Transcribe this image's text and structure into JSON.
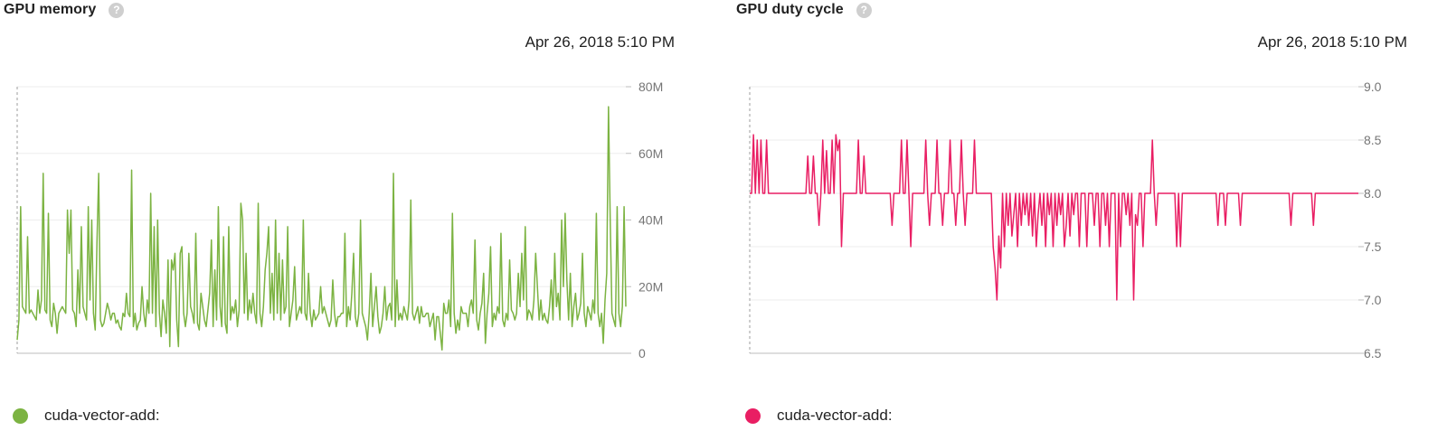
{
  "panels": [
    {
      "title": "GPU memory",
      "timestamp": "Apr 26, 2018 5:10 PM",
      "legend_label": "cuda-vector-add:",
      "color": "#7cb342"
    },
    {
      "title": "GPU duty cycle",
      "timestamp": "Apr 26, 2018 5:10 PM",
      "legend_label": "cuda-vector-add:",
      "color": "#e91e63"
    }
  ],
  "icons": {
    "help": "help-circle-icon",
    "legend": "legend-dot-icon"
  },
  "help_glyph": "?",
  "chart_data": [
    {
      "type": "line",
      "title": "GPU memory",
      "ylim": [
        0,
        80000000
      ],
      "y_ticks": [
        0,
        20000000,
        40000000,
        60000000,
        80000000
      ],
      "y_tick_labels": [
        "0",
        "20M",
        "40M",
        "60M",
        "80M"
      ],
      "grid": true,
      "legend": "bottom-left",
      "series": [
        {
          "name": "cuda-vector-add:",
          "color": "#7cb342",
          "values": [
            4,
            10,
            44,
            14,
            13,
            12,
            35,
            12,
            13,
            12,
            11,
            10,
            19,
            12,
            16,
            54,
            13,
            12,
            42,
            10,
            8,
            15,
            12,
            6,
            12,
            13,
            14,
            13,
            12,
            43,
            30,
            43,
            13,
            12,
            8,
            25,
            12,
            38,
            14,
            12,
            10,
            44,
            16,
            40,
            12,
            7,
            33,
            54,
            10,
            8,
            9,
            12,
            15,
            13,
            10,
            12,
            12,
            9,
            10,
            8,
            7,
            12,
            11,
            18,
            12,
            11,
            55,
            8,
            12,
            7,
            9,
            10,
            20,
            12,
            8,
            16,
            12,
            48,
            12,
            38,
            8,
            40,
            12,
            5,
            16,
            12,
            6,
            28,
            2,
            28,
            25,
            30,
            10,
            2,
            30,
            32,
            12,
            8,
            12,
            30,
            14,
            12,
            9,
            36,
            9,
            7,
            18,
            14,
            10,
            8,
            13,
            18,
            34,
            8,
            25,
            10,
            44,
            14,
            8,
            35,
            9,
            6,
            38,
            10,
            14,
            12,
            16,
            8,
            13,
            45,
            40,
            12,
            30,
            10,
            16,
            12,
            18,
            12,
            9,
            45,
            12,
            8,
            14,
            25,
            30,
            38,
            12,
            24,
            10,
            40,
            12,
            30,
            10,
            28,
            12,
            14,
            38,
            8,
            12,
            16,
            26,
            10,
            12,
            14,
            12,
            40,
            12,
            10,
            24,
            12,
            8,
            13,
            10,
            11,
            12,
            20,
            12,
            14,
            12,
            10,
            8,
            10,
            22,
            12,
            8,
            11,
            11,
            12,
            12,
            36,
            8,
            14,
            10,
            18,
            30,
            11,
            8,
            12,
            40,
            12,
            10,
            8,
            4,
            12,
            24,
            8,
            14,
            20,
            11,
            6,
            8,
            12,
            20,
            10,
            14,
            15,
            10,
            54,
            8,
            22,
            10,
            12,
            10,
            14,
            12,
            10,
            16,
            46,
            12,
            10,
            12,
            14,
            9,
            14,
            11,
            11,
            12,
            12,
            8,
            10,
            12,
            4,
            11,
            11,
            6,
            1,
            15,
            12,
            12,
            16,
            8,
            42,
            12,
            6,
            10,
            7,
            14,
            12,
            12,
            12,
            8,
            14,
            16,
            12,
            34,
            10,
            7,
            12,
            15,
            24,
            3,
            12,
            18,
            32,
            8,
            12,
            10,
            14,
            12,
            36,
            10,
            8,
            12,
            10,
            28,
            13,
            12,
            10,
            12,
            24,
            14,
            30,
            16,
            38,
            10,
            13,
            12,
            10,
            16,
            30,
            20,
            10,
            16,
            10,
            12,
            10,
            9,
            14,
            22,
            10,
            30,
            14,
            18,
            10,
            40,
            20,
            42,
            22,
            10,
            24,
            8,
            14,
            18,
            10,
            12,
            15,
            30,
            12,
            8,
            14,
            12,
            10,
            16,
            12,
            42,
            12,
            8,
            12,
            3,
            16,
            24,
            74,
            40,
            12,
            10,
            8,
            44,
            12,
            8,
            14,
            44,
            14
          ]
        }
      ]
    },
    {
      "type": "line",
      "title": "GPU duty cycle",
      "ylim": [
        6.5,
        9.0
      ],
      "y_ticks": [
        6.5,
        7.0,
        7.5,
        8.0,
        8.5,
        9.0
      ],
      "y_tick_labels": [
        "6.5",
        "7.0",
        "7.5",
        "8.0",
        "8.5",
        "9.0"
      ],
      "grid": true,
      "legend": "bottom-left",
      "series": [
        {
          "name": "cuda-vector-add:",
          "color": "#e91e63",
          "values": [
            8.0,
            8.0,
            8.55,
            8.0,
            8.5,
            8.0,
            8.5,
            8.0,
            8.0,
            8.5,
            8.0,
            8.0,
            8.0,
            8.0,
            8.0,
            8.0,
            8.0,
            8.0,
            8.0,
            8.0,
            8.0,
            8.0,
            8.0,
            8.0,
            8.0,
            8.0,
            8.0,
            8.0,
            8.0,
            8.0,
            8.0,
            8.35,
            8.0,
            8.0,
            8.35,
            8.0,
            8.0,
            7.7,
            8.0,
            8.5,
            8.0,
            8.4,
            8.0,
            8.0,
            8.5,
            8.0,
            8.55,
            8.4,
            8.5,
            7.5,
            8.0,
            8.0,
            8.0,
            8.0,
            8.0,
            8.0,
            8.0,
            8.0,
            8.5,
            8.0,
            8.0,
            8.35,
            8.0,
            8.0,
            8.0,
            8.0,
            8.0,
            8.0,
            8.0,
            8.0,
            8.0,
            8.0,
            8.0,
            8.0,
            8.0,
            8.0,
            7.7,
            8.0,
            8.0,
            8.0,
            8.0,
            8.5,
            8.0,
            8.0,
            8.5,
            8.0,
            7.5,
            8.0,
            8.0,
            8.0,
            8.0,
            8.0,
            8.0,
            8.0,
            8.5,
            8.0,
            7.7,
            8.0,
            8.0,
            8.0,
            8.5,
            8.0,
            8.0,
            7.7,
            8.0,
            8.0,
            8.0,
            8.5,
            8.0,
            8.0,
            7.7,
            8.0,
            8.0,
            8.5,
            8.0,
            7.7,
            8.0,
            8.0,
            8.0,
            8.0,
            8.5,
            8.0,
            8.0,
            8.0,
            8.0,
            8.0,
            8.0,
            8.0,
            8.0,
            8.0,
            7.5,
            7.3,
            7.0,
            7.6,
            7.3,
            8.0,
            7.5,
            8.0,
            7.7,
            8.0,
            7.6,
            7.8,
            8.0,
            7.5,
            8.0,
            7.7,
            8.0,
            7.8,
            8.0,
            7.7,
            8.0,
            7.6,
            8.0,
            7.5,
            7.8,
            8.0,
            7.7,
            8.0,
            7.5,
            8.0,
            7.8,
            8.0,
            7.5,
            8.0,
            7.7,
            8.0,
            7.8,
            8.0,
            7.5,
            7.7,
            8.0,
            7.6,
            8.0,
            7.8,
            8.0,
            8.0,
            7.5,
            8.0,
            8.0,
            8.0,
            7.5,
            8.0,
            8.0,
            8.0,
            7.7,
            8.0,
            8.0,
            7.5,
            8.0,
            8.0,
            7.7,
            8.0,
            7.5,
            8.0,
            8.0,
            8.0,
            7.0,
            8.0,
            7.5,
            8.0,
            8.0,
            7.8,
            8.0,
            7.7,
            8.0,
            7.0,
            7.8,
            7.7,
            8.0,
            8.0,
            7.5,
            8.0,
            8.0,
            8.0,
            8.0,
            8.5,
            8.0,
            7.7,
            8.0,
            8.0,
            8.0,
            8.0,
            8.0,
            8.0,
            8.0,
            8.0,
            8.0,
            8.0,
            7.5,
            8.0,
            7.5,
            8.0,
            8.0,
            8.0,
            8.0,
            8.0,
            8.0,
            8.0,
            8.0,
            8.0,
            8.0,
            8.0,
            8.0,
            8.0,
            8.0,
            8.0,
            8.0,
            8.0,
            8.0,
            8.0,
            7.7,
            8.0,
            8.0,
            8.0,
            7.7,
            8.0,
            8.0,
            8.0,
            8.0,
            8.0,
            8.0,
            8.0,
            7.7,
            8.0,
            8.0,
            8.0,
            8.0,
            8.0,
            8.0,
            8.0,
            8.0,
            8.0,
            8.0,
            8.0,
            8.0,
            8.0,
            8.0,
            8.0,
            8.0,
            8.0,
            8.0,
            8.0,
            8.0,
            8.0,
            8.0,
            8.0,
            8.0,
            8.0,
            8.0,
            7.7,
            8.0,
            8.0,
            8.0,
            8.0,
            8.0,
            8.0,
            8.0,
            8.0,
            8.0,
            8.0,
            8.0,
            7.7,
            8.0,
            8.0,
            8.0,
            8.0,
            8.0,
            8.0,
            8.0,
            8.0,
            8.0,
            8.0,
            8.0,
            8.0,
            8.0,
            8.0,
            8.0,
            8.0,
            8.0,
            8.0,
            8.0,
            8.0,
            8.0,
            8.0,
            8.0,
            8.0
          ]
        }
      ]
    }
  ]
}
